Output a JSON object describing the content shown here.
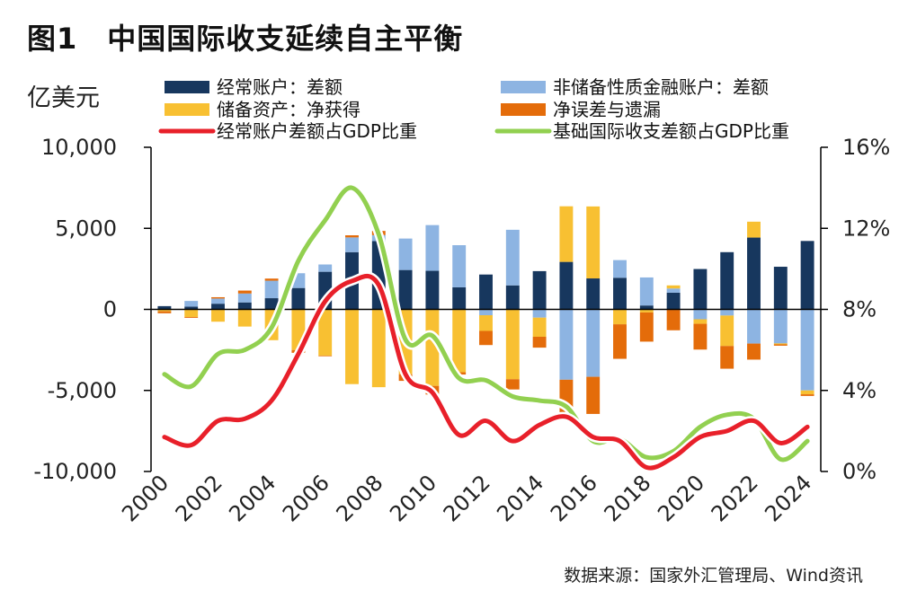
{
  "page": {
    "title": "图1　中国国际收支延续自主平衡",
    "source": "数据来源：国家外汇管理局、Wind资讯"
  },
  "chart_data": {
    "type": "bar",
    "left_axis_unit": "亿美元",
    "x": [
      2000,
      2001,
      2002,
      2003,
      2004,
      2005,
      2006,
      2007,
      2008,
      2009,
      2010,
      2011,
      2012,
      2013,
      2014,
      2015,
      2016,
      2017,
      2018,
      2019,
      2020,
      2021,
      2022,
      2023,
      2024
    ],
    "x_tick_labels": [
      "2000",
      "2002",
      "2004",
      "2006",
      "2008",
      "2010",
      "2012",
      "2014",
      "2016",
      "2018",
      "2020",
      "2022",
      "2024"
    ],
    "ylim_left": [
      -10000,
      10000
    ],
    "yticks_left": [
      "10,000",
      "5,000",
      "0",
      "-5,000",
      "-10,000"
    ],
    "ylim_right": [
      0,
      16
    ],
    "yticks_right": [
      "16%",
      "12%",
      "8%",
      "4%",
      "0%"
    ],
    "grid": false,
    "legend_position": "top",
    "series": [
      {
        "name": "经常账户：差额",
        "kind": "bar",
        "color": "#17375e",
        "values": [
          200,
          170,
          350,
          430,
          690,
          1320,
          2320,
          3530,
          4210,
          2430,
          2380,
          1360,
          2150,
          1480,
          2360,
          2930,
          1910,
          1950,
          240,
          1030,
          2490,
          3530,
          4430,
          2630,
          4220
        ]
      },
      {
        "name": "非储备性质金融账户：差额",
        "kind": "bar",
        "color": "#8db4e2",
        "values": [
          -20,
          350,
          320,
          550,
          1080,
          910,
          450,
          910,
          370,
          1940,
          2820,
          2600,
          -360,
          3430,
          -510,
          -4340,
          -4160,
          1090,
          1730,
          260,
          -610,
          -380,
          -2110,
          -2100,
          -5000
        ]
      },
      {
        "name": "储备资产：净获得",
        "kind": "bar",
        "color": "#f8c032",
        "values": [
          -100,
          -470,
          -760,
          -1060,
          -1900,
          -2510,
          -2850,
          -4610,
          -4800,
          -4000,
          -4720,
          -3880,
          -970,
          -4310,
          -1180,
          3430,
          4440,
          -920,
          -190,
          190,
          -280,
          -1880,
          980,
          -60,
          -240
        ]
      },
      {
        "name": "净误差与遗漏",
        "kind": "bar",
        "color": "#e46c0a",
        "values": [
          -120,
          -50,
          80,
          180,
          130,
          -170,
          -40,
          130,
          260,
          -410,
          -530,
          -140,
          -870,
          -630,
          -670,
          -2130,
          -2290,
          -2130,
          -1800,
          -1290,
          -1590,
          -1400,
          -990,
          -80,
          -100
        ]
      },
      {
        "name": "经常账户差额占GDP比重",
        "kind": "line",
        "axis": "right",
        "color": "#e8202a",
        "values": [
          1.7,
          1.3,
          2.5,
          2.6,
          3.5,
          5.8,
          8.4,
          9.4,
          9.2,
          4.8,
          3.9,
          1.8,
          2.5,
          1.5,
          2.3,
          2.7,
          1.7,
          1.5,
          0.2,
          0.7,
          1.7,
          2.0,
          2.5,
          1.4,
          2.2
        ]
      },
      {
        "name": "基础国际收支差额占GDP比重",
        "kind": "line",
        "axis": "right",
        "color": "#92d050",
        "values": [
          4.8,
          4.2,
          5.8,
          6.0,
          7.1,
          10.4,
          12.4,
          14.0,
          11.7,
          6.5,
          6.7,
          4.6,
          4.5,
          3.7,
          3.5,
          3.2,
          1.5,
          1.6,
          0.7,
          1.0,
          2.2,
          2.8,
          2.6,
          0.6,
          1.5
        ]
      }
    ]
  }
}
